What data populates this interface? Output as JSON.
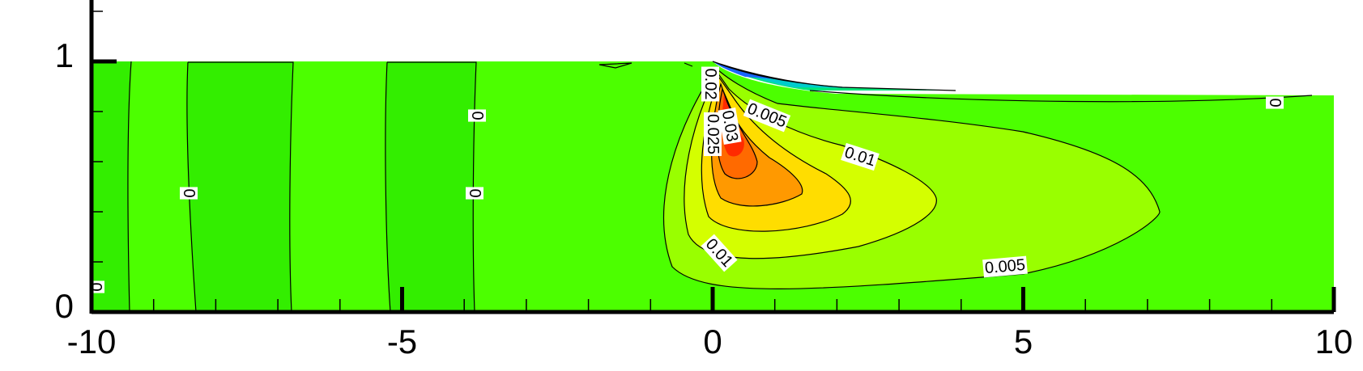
{
  "chart_data": {
    "type": "contour",
    "xlim": [
      -10,
      10
    ],
    "ylim": [
      0,
      1.25
    ],
    "xticks": [
      -10,
      -5,
      0,
      5,
      10
    ],
    "xminorticks": [
      -9,
      -8,
      -7,
      -6,
      -4,
      -3,
      -2,
      -1,
      1,
      2,
      3,
      4,
      6,
      7,
      8,
      9
    ],
    "yticks": [
      0,
      1
    ],
    "yminorticks": [
      0.2,
      0.4,
      0.6,
      0.8,
      1.2
    ],
    "levels": [
      {
        "value": -0.01,
        "color": "#1a66ff"
      },
      {
        "value": -0.005,
        "color": "#00cccc"
      },
      {
        "value": -0.0025,
        "color": "#00e67a"
      },
      {
        "value": 0,
        "color": "#33ee00"
      },
      {
        "value": 0.0025,
        "color": "#4cff00"
      },
      {
        "value": 0.005,
        "color": "#99ff00"
      },
      {
        "value": 0.01,
        "color": "#d4ff00"
      },
      {
        "value": 0.015,
        "color": "#ffdd00"
      },
      {
        "value": 0.02,
        "color": "#ff9900"
      },
      {
        "value": 0.025,
        "color": "#ff6a00"
      },
      {
        "value": 0.03,
        "color": "#ff2a00"
      }
    ],
    "contour_labels": [
      0,
      0,
      0,
      0,
      0,
      0.005,
      0.01,
      0.01,
      0.005,
      0.03,
      0.025,
      0.02
    ]
  }
}
